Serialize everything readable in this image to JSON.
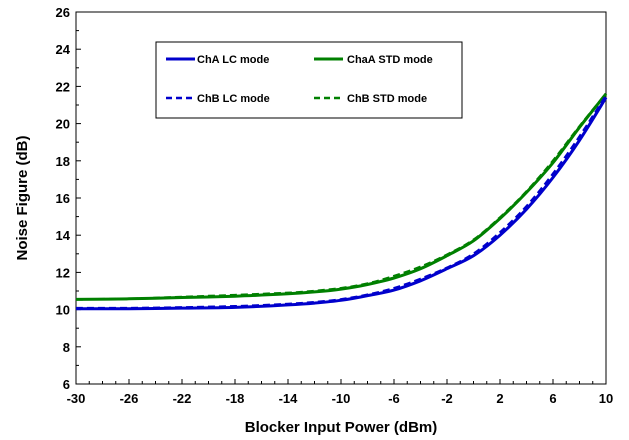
{
  "chart_data": {
    "type": "line",
    "xlabel": "Blocker Input Power (dBm)",
    "ylabel": "Noise Figure (dB)",
    "xlim": [
      -30,
      10
    ],
    "ylim": [
      6,
      26
    ],
    "xticks": [
      -30,
      -26,
      -22,
      -18,
      -14,
      -10,
      -6,
      -2,
      2,
      6,
      10
    ],
    "yticks": [
      6,
      8,
      10,
      12,
      14,
      16,
      18,
      20,
      22,
      24,
      26
    ],
    "grid": false,
    "legend_position": "top-center",
    "series": [
      {
        "name": "ChA LC mode",
        "color": "#0000cc",
        "dash": "solid",
        "x": [
          -30,
          -26,
          -22,
          -18,
          -14,
          -12,
          -10,
          -8,
          -6,
          -4,
          -2,
          0,
          2,
          4,
          6,
          8,
          10
        ],
        "y": [
          10.05,
          10.05,
          10.08,
          10.12,
          10.25,
          10.35,
          10.5,
          10.75,
          11.05,
          11.55,
          12.2,
          12.9,
          14.0,
          15.4,
          17.1,
          19.1,
          21.4
        ]
      },
      {
        "name": "ChaA STD mode",
        "color": "#008000",
        "dash": "solid",
        "x": [
          -30,
          -26,
          -22,
          -18,
          -14,
          -12,
          -10,
          -8,
          -6,
          -4,
          -2,
          0,
          2,
          4,
          6,
          8,
          10
        ],
        "y": [
          10.55,
          10.58,
          10.65,
          10.72,
          10.85,
          10.95,
          11.1,
          11.35,
          11.7,
          12.2,
          12.9,
          13.7,
          14.9,
          16.3,
          17.9,
          19.8,
          21.6
        ]
      },
      {
        "name": "ChB LC mode",
        "color": "#0000cc",
        "dash": "dashed",
        "x": [
          -30,
          -26,
          -22,
          -18,
          -14,
          -12,
          -10,
          -8,
          -6,
          -4,
          -2,
          0,
          2,
          4,
          6,
          8,
          10
        ],
        "y": [
          10.08,
          10.08,
          10.12,
          10.18,
          10.3,
          10.4,
          10.55,
          10.8,
          11.15,
          11.65,
          12.25,
          13.0,
          14.15,
          15.55,
          17.3,
          19.3,
          21.5
        ]
      },
      {
        "name": "ChB STD mode",
        "color": "#008000",
        "dash": "dashed",
        "x": [
          -30,
          -26,
          -22,
          -18,
          -14,
          -12,
          -10,
          -8,
          -6,
          -4,
          -2,
          0,
          2,
          4,
          6,
          8,
          10
        ],
        "y": [
          10.55,
          10.58,
          10.68,
          10.78,
          10.9,
          11.0,
          11.15,
          11.4,
          11.8,
          12.3,
          12.95,
          13.75,
          14.95,
          16.35,
          18.0,
          19.85,
          21.6
        ]
      }
    ]
  }
}
